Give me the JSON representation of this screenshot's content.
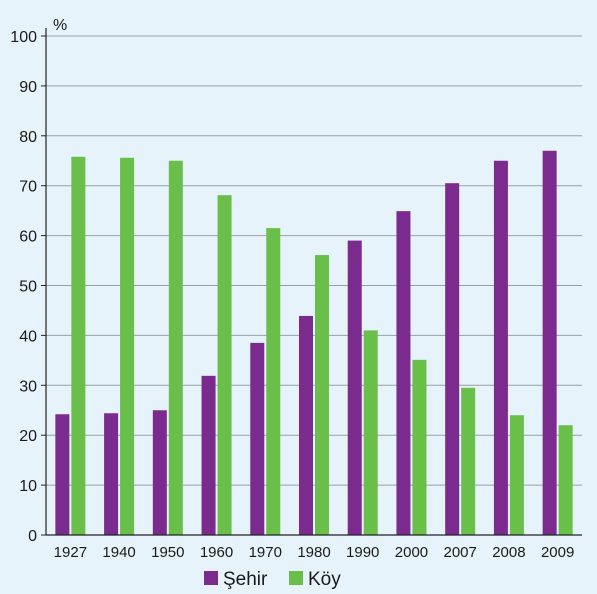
{
  "chart_data": {
    "type": "bar",
    "title": "",
    "xlabel": "",
    "ylabel": "%",
    "ylim": [
      0,
      100
    ],
    "yticks": [
      0,
      10,
      20,
      30,
      40,
      50,
      60,
      70,
      80,
      90,
      100
    ],
    "grid": true,
    "legend_position": "bottom",
    "categories": [
      "1927",
      "1940",
      "1950",
      "1960",
      "1970",
      "1980",
      "1990",
      "2000",
      "2007",
      "2008",
      "2009"
    ],
    "series": [
      {
        "name": "Şehir",
        "color": "#7b2a8e",
        "values": [
          24.2,
          24.4,
          25.0,
          31.9,
          38.5,
          43.9,
          59.0,
          64.9,
          70.5,
          75.0,
          77.0
        ]
      },
      {
        "name": "Köy",
        "color": "#6abf4b",
        "values": [
          75.8,
          75.6,
          75.0,
          68.1,
          61.5,
          56.1,
          41.0,
          35.1,
          29.5,
          24.0,
          22.0
        ]
      }
    ]
  }
}
